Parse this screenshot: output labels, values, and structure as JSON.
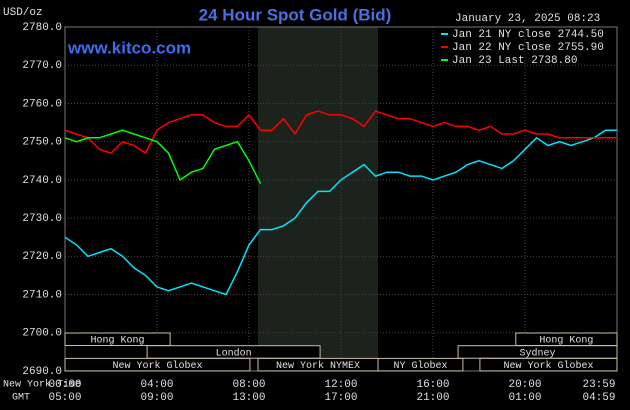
{
  "chart_data": {
    "type": "line",
    "title": "24 Hour Spot Gold (Bid)",
    "y_label": "USD/oz",
    "watermark": "www.kitco.com",
    "timestamp": "January 23, 2025 08:23",
    "x_label": "New York Time",
    "x2_label": "GMT",
    "x": [
      0,
      0.5,
      1,
      1.5,
      2,
      2.5,
      3,
      3.5,
      4,
      4.5,
      5,
      5.5,
      6,
      6.5,
      7,
      7.5,
      8,
      8.5,
      9,
      9.5,
      10,
      10.5,
      11,
      11.5,
      12,
      12.5,
      13,
      13.5,
      14,
      14.5,
      15,
      15.5,
      16,
      16.5,
      17,
      17.5,
      18,
      18.5,
      19,
      19.5,
      20,
      20.5,
      21,
      21.5,
      22,
      22.5,
      23,
      23.5,
      24
    ],
    "series": [
      {
        "name": "Jan 21 NY close 2744.50",
        "color": "#00e5ff",
        "values": [
          2725,
          2723,
          2720,
          2721,
          2722,
          2720,
          2717,
          2715,
          2712,
          2711,
          2712,
          2713,
          2712,
          2711,
          2710,
          2716,
          2723,
          2727,
          2727,
          2728,
          2730,
          2734,
          2737,
          2737,
          2740,
          2742,
          2744,
          2741,
          2742,
          2742,
          2741,
          2741,
          2740,
          2741,
          2742,
          2744,
          2745,
          2744,
          2743,
          2745,
          2748,
          2751,
          2749,
          2750,
          2749,
          2750,
          2751,
          2753,
          2753
        ]
      },
      {
        "name": "Jan 22 NY close 2755.90",
        "color": "#ff0000",
        "values": [
          2753,
          2752,
          2751,
          2748,
          2747,
          2750,
          2749,
          2747,
          2753,
          2755,
          2756,
          2757,
          2757,
          2755,
          2754,
          2754,
          2757,
          2753,
          2753,
          2756,
          2752,
          2757,
          2758,
          2757,
          2757,
          2756,
          2754,
          2758,
          2757,
          2756,
          2756,
          2755,
          2754,
          2755,
          2754,
          2754,
          2753,
          2754,
          2752,
          2752,
          2753,
          2752,
          2752,
          2751,
          2751,
          2751,
          2751,
          2751,
          2751
        ]
      },
      {
        "name": "Jan 23 Last 2738.80",
        "color": "#00ff00",
        "values": [
          2751,
          2750,
          2751,
          2751,
          2752,
          2753,
          2752,
          2751,
          2750,
          2747,
          2740,
          2742,
          2743,
          2748,
          2749,
          2750,
          2745,
          2739,
          null,
          null,
          null,
          null,
          null,
          null,
          null,
          null,
          null,
          null,
          null,
          null,
          null,
          null,
          null,
          null,
          null,
          null,
          null,
          null,
          null,
          null,
          null,
          null,
          null,
          null,
          null,
          null,
          null,
          null,
          null
        ]
      }
    ],
    "xlim": [
      0,
      24
    ],
    "xticks": [
      {
        "value": 0,
        "label": "00:00"
      },
      {
        "value": 4,
        "label": "04:00"
      },
      {
        "value": 8,
        "label": "08:00"
      },
      {
        "value": 12,
        "label": "12:00"
      },
      {
        "value": 16,
        "label": "16:00"
      },
      {
        "value": 20,
        "label": "20:00"
      },
      {
        "value": 24,
        "label": "23:59"
      }
    ],
    "x2ticks": [
      "05:00",
      "09:00",
      "13:00",
      "17:00",
      "21:00",
      "01:00",
      "04:59"
    ],
    "ylim": [
      2690,
      2780
    ],
    "yticks": [
      {
        "value": 2690,
        "label": "2690.0"
      },
      {
        "value": 2700,
        "label": "2700.0"
      },
      {
        "value": 2710,
        "label": "2710.0"
      },
      {
        "value": 2720,
        "label": "2720.0"
      },
      {
        "value": 2730,
        "label": "2730.0"
      },
      {
        "value": 2740,
        "label": "2740.0"
      },
      {
        "value": 2750,
        "label": "2750.0"
      },
      {
        "value": 2760,
        "label": "2760.0"
      },
      {
        "value": 2770,
        "label": "2770.0"
      },
      {
        "value": 2780,
        "label": "2780.0"
      }
    ],
    "grid": true,
    "highlight": [
      8.39,
      13.61
    ],
    "sessions": [
      {
        "label": "Hong Kong",
        "row": 1,
        "start": 0,
        "end": 4.57
      },
      {
        "label": "London",
        "row": 2,
        "start": 3.57,
        "end": 11.09
      },
      {
        "label": "New York Globex",
        "row": 3,
        "start": 0,
        "end": 8.04
      },
      {
        "label": "New York NYMEX",
        "row": 3,
        "start": 8.39,
        "end": 13.61
      },
      {
        "label": "NY Globex",
        "row": 3,
        "start": 13.61,
        "end": 17.3
      },
      {
        "label": "Sydney",
        "row": 2,
        "start": 17.09,
        "end": 24
      },
      {
        "label": "Hong Kong",
        "row": 1,
        "start": 19.6,
        "end": 24
      },
      {
        "label": "New York Globex",
        "row": 3,
        "start": 18.04,
        "end": 24
      }
    ]
  }
}
